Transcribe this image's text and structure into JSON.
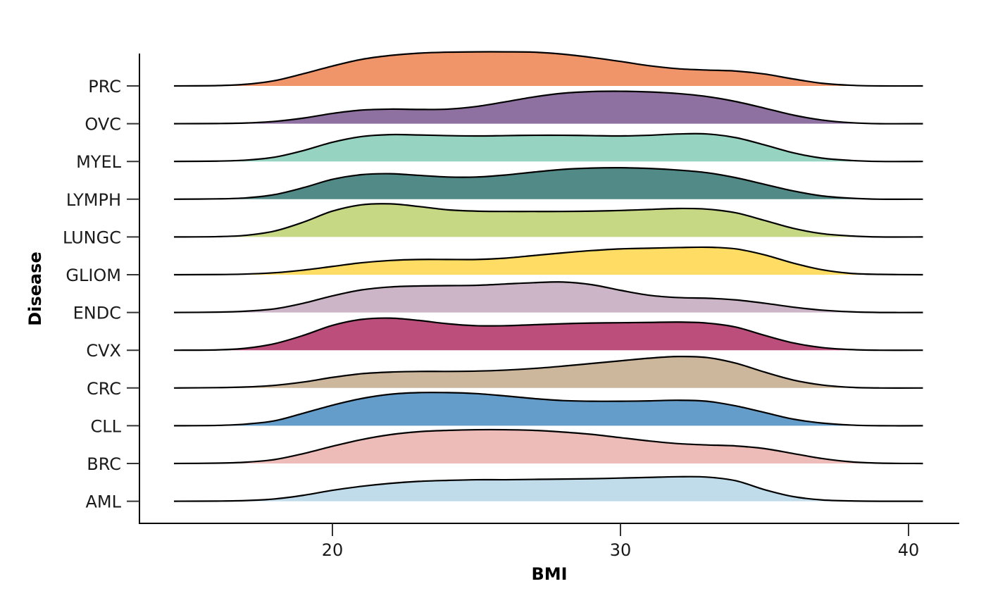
{
  "chart_data": {
    "type": "ridgeline",
    "title": "",
    "xlabel": "BMI",
    "ylabel": "Disease",
    "xlim": [
      13.5,
      41.8
    ],
    "xticks": [
      20,
      30,
      40
    ],
    "x": [
      14.5,
      16,
      17,
      18,
      19,
      20,
      21,
      22,
      23,
      24,
      25,
      26,
      27,
      28,
      29,
      30,
      31,
      32,
      33,
      34,
      35,
      36,
      37,
      38,
      39,
      40.5
    ],
    "series": [
      {
        "name": "AML",
        "color": "#c0dcea",
        "values": [
          0,
          0.005,
          0.02,
          0.07,
          0.18,
          0.33,
          0.45,
          0.54,
          0.6,
          0.63,
          0.65,
          0.65,
          0.66,
          0.67,
          0.68,
          0.7,
          0.72,
          0.74,
          0.73,
          0.62,
          0.35,
          0.14,
          0.04,
          0.01,
          0,
          0
        ]
      },
      {
        "name": "BRC",
        "color": "#eebcb8",
        "values": [
          0,
          0.01,
          0.04,
          0.12,
          0.3,
          0.52,
          0.72,
          0.87,
          0.96,
          1.0,
          1.02,
          1.02,
          1.0,
          0.95,
          0.88,
          0.78,
          0.68,
          0.6,
          0.56,
          0.53,
          0.45,
          0.3,
          0.15,
          0.05,
          0.01,
          0
        ]
      },
      {
        "name": "CLL",
        "color": "#649dca",
        "values": [
          0,
          0.01,
          0.05,
          0.15,
          0.38,
          0.62,
          0.82,
          0.95,
          1.0,
          1.0,
          0.97,
          0.9,
          0.82,
          0.76,
          0.74,
          0.74,
          0.75,
          0.77,
          0.74,
          0.6,
          0.4,
          0.2,
          0.08,
          0.02,
          0,
          0
        ]
      },
      {
        "name": "CRC",
        "color": "#ccb79c",
        "values": [
          0,
          0.01,
          0.03,
          0.08,
          0.18,
          0.32,
          0.43,
          0.48,
          0.5,
          0.5,
          0.51,
          0.54,
          0.59,
          0.66,
          0.74,
          0.82,
          0.9,
          0.95,
          0.92,
          0.75,
          0.48,
          0.24,
          0.09,
          0.02,
          0,
          0
        ]
      },
      {
        "name": "CVX",
        "color": "#bc4e7b",
        "values": [
          0,
          0.01,
          0.06,
          0.2,
          0.45,
          0.75,
          0.93,
          0.97,
          0.9,
          0.8,
          0.74,
          0.74,
          0.77,
          0.8,
          0.82,
          0.83,
          0.84,
          0.85,
          0.82,
          0.7,
          0.45,
          0.22,
          0.08,
          0.02,
          0,
          0
        ]
      },
      {
        "name": "ENDC",
        "color": "#cbb5c7",
        "values": [
          0,
          0.01,
          0.04,
          0.11,
          0.28,
          0.5,
          0.68,
          0.77,
          0.8,
          0.81,
          0.82,
          0.86,
          0.9,
          0.92,
          0.84,
          0.67,
          0.52,
          0.45,
          0.43,
          0.38,
          0.28,
          0.16,
          0.07,
          0.02,
          0,
          0
        ]
      },
      {
        "name": "GLIOM",
        "color": "#ffdd65",
        "values": [
          0,
          0.005,
          0.02,
          0.06,
          0.14,
          0.25,
          0.36,
          0.43,
          0.46,
          0.46,
          0.46,
          0.5,
          0.58,
          0.66,
          0.73,
          0.78,
          0.8,
          0.82,
          0.83,
          0.78,
          0.6,
          0.35,
          0.15,
          0.04,
          0.01,
          0
        ]
      },
      {
        "name": "LUNGC",
        "color": "#c6d884",
        "values": [
          0,
          0.01,
          0.05,
          0.18,
          0.45,
          0.78,
          0.97,
          1.0,
          0.92,
          0.82,
          0.78,
          0.77,
          0.77,
          0.77,
          0.78,
          0.8,
          0.83,
          0.86,
          0.84,
          0.73,
          0.5,
          0.26,
          0.1,
          0.03,
          0,
          0
        ]
      },
      {
        "name": "LYMPH",
        "color": "#528a88",
        "values": [
          0,
          0.01,
          0.04,
          0.14,
          0.35,
          0.6,
          0.74,
          0.77,
          0.72,
          0.67,
          0.67,
          0.73,
          0.82,
          0.9,
          0.94,
          0.95,
          0.93,
          0.88,
          0.8,
          0.65,
          0.45,
          0.25,
          0.1,
          0.03,
          0,
          0
        ]
      },
      {
        "name": "MYEL",
        "color": "#96d4c1",
        "values": [
          0,
          0.01,
          0.04,
          0.13,
          0.33,
          0.58,
          0.75,
          0.81,
          0.8,
          0.78,
          0.77,
          0.78,
          0.79,
          0.79,
          0.78,
          0.77,
          0.79,
          0.83,
          0.83,
          0.72,
          0.5,
          0.26,
          0.1,
          0.03,
          0,
          0
        ]
      },
      {
        "name": "OVC",
        "color": "#8e71a0",
        "values": [
          0,
          0.005,
          0.02,
          0.07,
          0.17,
          0.31,
          0.41,
          0.44,
          0.43,
          0.44,
          0.52,
          0.66,
          0.81,
          0.92,
          0.97,
          0.98,
          0.96,
          0.91,
          0.82,
          0.67,
          0.47,
          0.26,
          0.11,
          0.03,
          0,
          0
        ]
      },
      {
        "name": "PRC",
        "color": "#f0946a",
        "values": [
          0,
          0.01,
          0.05,
          0.16,
          0.37,
          0.6,
          0.8,
          0.92,
          0.99,
          1.02,
          1.03,
          1.03,
          1.02,
          0.96,
          0.86,
          0.74,
          0.61,
          0.52,
          0.48,
          0.45,
          0.36,
          0.21,
          0.08,
          0.02,
          0,
          0
        ]
      }
    ],
    "grid": false,
    "legend": "none"
  }
}
